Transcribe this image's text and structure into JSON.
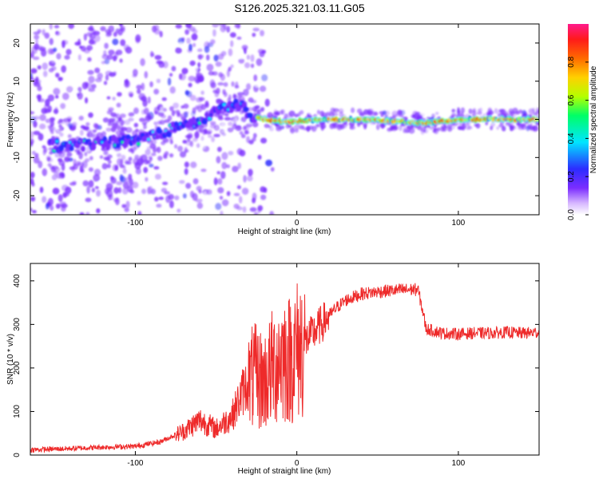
{
  "figure": {
    "title": "S126.2025.321.03.11.G05"
  },
  "chart_data": [
    {
      "type": "heatmap",
      "panel": "top",
      "xlabel": "Height of straight line (km)",
      "ylabel": "Frequency (Hz)",
      "xlim": [
        -165,
        150
      ],
      "ylim": [
        -25,
        25
      ],
      "xticks": [
        -100,
        0,
        100
      ],
      "yticks": [
        -20,
        -10,
        0,
        10,
        20
      ],
      "colorbar": {
        "label": "Normalized spectral amplitude",
        "range": [
          0,
          1
        ],
        "ticks": [
          "0.0",
          "0.2",
          "0.4",
          "0.6",
          "0.8"
        ],
        "colors": [
          "#ffffff",
          "#7b2dff",
          "#2c2cff",
          "#00e5ff",
          "#00ff66",
          "#b5ff00",
          "#ffd000",
          "#ff6a00",
          "#ff1a1a",
          "#ff1a8c"
        ]
      },
      "ridge": {
        "description": "spectral peak frequency track",
        "x": [
          -150,
          -130,
          -110,
          -95,
          -80,
          -65,
          -55,
          -45,
          -35,
          -28,
          -20,
          -10,
          0,
          20,
          40,
          60,
          80,
          100,
          120,
          145
        ],
        "y": [
          -7,
          -6.5,
          -6,
          -5,
          -3,
          -1,
          1,
          3,
          4,
          1,
          0,
          -0.5,
          -0.5,
          0,
          0,
          -0.5,
          -1,
          0,
          0,
          0
        ]
      }
    },
    {
      "type": "line",
      "panel": "bottom",
      "xlabel": "Height of straight line (km)",
      "ylabel": "SNR (10 * v/v)",
      "xlim": [
        -165,
        150
      ],
      "ylim": [
        0,
        440
      ],
      "xticks": [
        -100,
        0,
        100
      ],
      "yticks": [
        0,
        100,
        200,
        300,
        400
      ],
      "series": [
        {
          "name": "SNR",
          "color": "#ee2a2a",
          "x": [
            -165,
            -140,
            -120,
            -100,
            -85,
            -70,
            -60,
            -50,
            -40,
            -33,
            -27,
            -20,
            -15,
            -10,
            -5,
            0,
            5,
            10,
            15,
            20,
            25,
            30,
            40,
            50,
            60,
            70,
            75,
            78,
            80,
            90,
            100,
            110,
            120,
            130,
            140,
            150
          ],
          "values": [
            12,
            15,
            18,
            20,
            30,
            55,
            80,
            60,
            90,
            150,
            180,
            170,
            200,
            230,
            220,
            240,
            260,
            280,
            300,
            320,
            340,
            355,
            370,
            375,
            378,
            380,
            380,
            330,
            290,
            280,
            278,
            280,
            280,
            282,
            280,
            282
          ]
        }
      ]
    }
  ]
}
